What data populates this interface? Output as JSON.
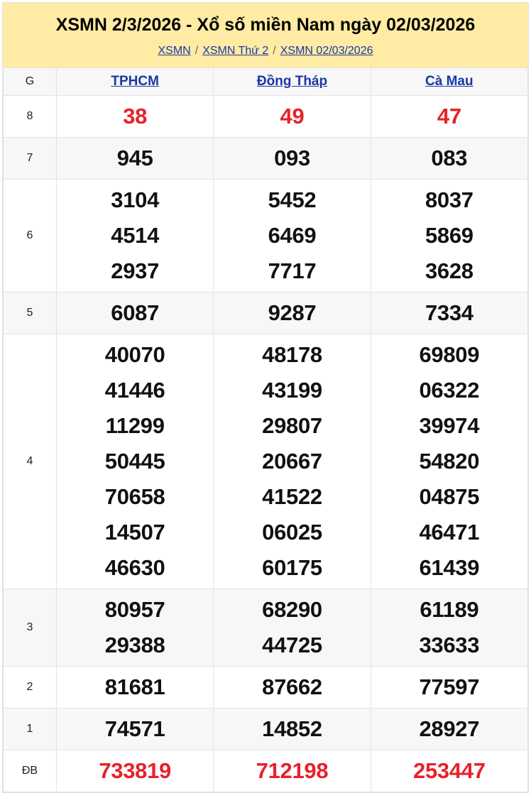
{
  "header": {
    "title": "XSMN 2/3/2026 - Xổ số miền Nam ngày 02/03/2026",
    "breadcrumb": [
      "XSMN",
      "XSMN Thứ 2",
      "XSMN 02/03/2026"
    ],
    "separator": "/"
  },
  "table": {
    "prize_header": "G",
    "provinces": [
      "TPHCM",
      "Đồng Tháp",
      "Cà Mau"
    ],
    "rows": [
      {
        "prize": "8",
        "highlight": true,
        "values": [
          [
            "38"
          ],
          [
            "49"
          ],
          [
            "47"
          ]
        ]
      },
      {
        "prize": "7",
        "values": [
          [
            "945"
          ],
          [
            "093"
          ],
          [
            "083"
          ]
        ]
      },
      {
        "prize": "6",
        "values": [
          [
            "3104",
            "4514",
            "2937"
          ],
          [
            "5452",
            "6469",
            "7717"
          ],
          [
            "8037",
            "5869",
            "3628"
          ]
        ]
      },
      {
        "prize": "5",
        "values": [
          [
            "6087"
          ],
          [
            "9287"
          ],
          [
            "7334"
          ]
        ]
      },
      {
        "prize": "4",
        "values": [
          [
            "40070",
            "41446",
            "11299",
            "50445",
            "70658",
            "14507",
            "46630"
          ],
          [
            "48178",
            "43199",
            "29807",
            "20667",
            "41522",
            "06025",
            "60175"
          ],
          [
            "69809",
            "06322",
            "39974",
            "54820",
            "04875",
            "46471",
            "61439"
          ]
        ]
      },
      {
        "prize": "3",
        "values": [
          [
            "80957",
            "29388"
          ],
          [
            "68290",
            "44725"
          ],
          [
            "61189",
            "33633"
          ]
        ]
      },
      {
        "prize": "2",
        "values": [
          [
            "81681"
          ],
          [
            "87662"
          ],
          [
            "77597"
          ]
        ]
      },
      {
        "prize": "1",
        "values": [
          [
            "74571"
          ],
          [
            "14852"
          ],
          [
            "28927"
          ]
        ]
      },
      {
        "prize": "ĐB",
        "highlight": true,
        "values": [
          [
            "733819"
          ],
          [
            "712198"
          ],
          [
            "253447"
          ]
        ]
      }
    ]
  },
  "colors": {
    "header_bg": "#ffeba3",
    "link": "#1a37a8",
    "highlight": "#e8212b",
    "stripe": "#f7f7f7"
  }
}
